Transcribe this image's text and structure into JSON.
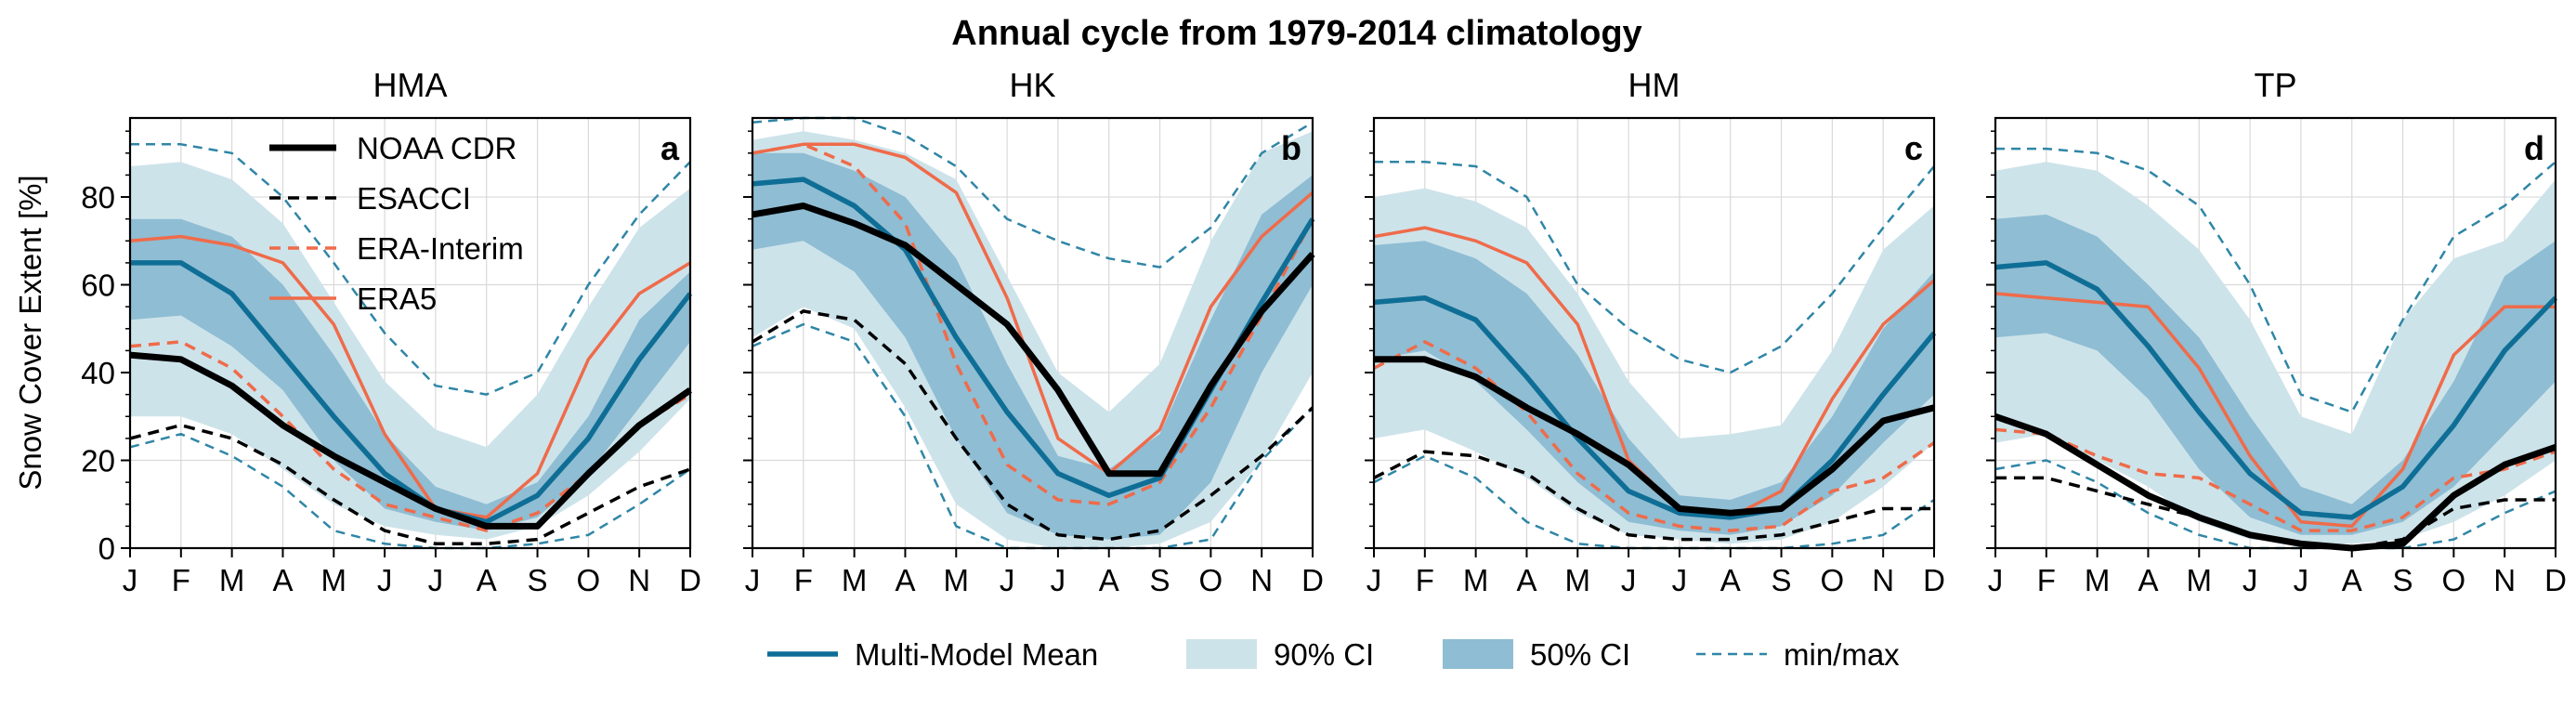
{
  "suptitle": "Annual cycle from 1979-2014 climatology",
  "ylabel": "Snow Cover Extent [%]",
  "colors": {
    "mmm": "#0f6e96",
    "ci90": "#cde3ea",
    "ci50": "#8fbdd3",
    "minmax": "#2f86a6",
    "noaa": "#000000",
    "esacci": "#000000",
    "erai": "#ef6b4a",
    "era5": "#ef6b4a"
  },
  "legend_left": [
    {
      "key": "noaa",
      "label": "NOAA CDR"
    },
    {
      "key": "esacci",
      "label": "ESACCI"
    },
    {
      "key": "erai",
      "label": "ERA-Interim"
    },
    {
      "key": "era5",
      "label": "ERA5"
    }
  ],
  "legend_bottom": [
    {
      "key": "mmm",
      "label": "Multi-Model Mean"
    },
    {
      "key": "ci90",
      "label": "90% CI"
    },
    {
      "key": "ci50",
      "label": "50% CI"
    },
    {
      "key": "minmax",
      "label": "min/max"
    }
  ],
  "chart_data": [
    {
      "type": "line",
      "title": "HMA",
      "panel_letter": "a",
      "categories": [
        "J",
        "F",
        "M",
        "A",
        "M",
        "J",
        "J",
        "A",
        "S",
        "O",
        "N",
        "D"
      ],
      "ylim": [
        0,
        98
      ],
      "yticks": [
        0,
        20,
        40,
        60,
        80
      ],
      "grid": true,
      "ci90": {
        "low": [
          30,
          30,
          26,
          18,
          10,
          5,
          3,
          2,
          5,
          12,
          22,
          34
        ],
        "high": [
          87,
          88,
          84,
          74,
          56,
          38,
          27,
          23,
          35,
          55,
          73,
          82
        ]
      },
      "ci50": {
        "low": [
          52,
          53,
          46,
          36,
          20,
          9,
          6,
          4,
          7,
          17,
          32,
          47
        ],
        "high": [
          75,
          75,
          71,
          60,
          44,
          26,
          14,
          10,
          15,
          30,
          52,
          63
        ]
      },
      "minmax": {
        "min": [
          23,
          26,
          21,
          14,
          4,
          1,
          0,
          0,
          1,
          3,
          10,
          18
        ],
        "max": [
          92,
          92,
          90,
          80,
          65,
          49,
          37,
          35,
          40,
          60,
          76,
          88
        ]
      },
      "series": [
        {
          "key": "mmm",
          "name": "Multi-Model Mean",
          "values": [
            65,
            65,
            58,
            44,
            30,
            17,
            9,
            6,
            12,
            25,
            43,
            58
          ]
        },
        {
          "key": "noaa",
          "name": "NOAA CDR",
          "values": [
            44,
            43,
            37,
            28,
            21,
            15,
            9,
            5,
            5,
            17,
            28,
            36
          ]
        },
        {
          "key": "esacci",
          "name": "ESACCI",
          "values": [
            25,
            28,
            25,
            19,
            11,
            4,
            1,
            1,
            2,
            8,
            14,
            18
          ]
        },
        {
          "key": "erai",
          "name": "ERA-Interim",
          "values": [
            46,
            47,
            41,
            30,
            18,
            10,
            7,
            4,
            8,
            17,
            28,
            35
          ]
        },
        {
          "key": "era5",
          "name": "ERA5",
          "values": [
            70,
            71,
            69,
            65,
            51,
            26,
            9,
            7,
            17,
            43,
            58,
            65
          ]
        }
      ]
    },
    {
      "type": "line",
      "title": "HK",
      "panel_letter": "b",
      "categories": [
        "J",
        "F",
        "M",
        "A",
        "M",
        "J",
        "J",
        "A",
        "S",
        "O",
        "N",
        "D"
      ],
      "ylim": [
        0,
        98
      ],
      "yticks": [
        0,
        20,
        40,
        60,
        80
      ],
      "grid": true,
      "ci90": {
        "low": [
          48,
          55,
          50,
          32,
          10,
          2,
          0,
          0,
          1,
          6,
          20,
          40
        ],
        "high": [
          93,
          95,
          93,
          90,
          84,
          62,
          40,
          31,
          42,
          70,
          90,
          95
        ]
      },
      "ci50": {
        "low": [
          68,
          70,
          63,
          48,
          25,
          8,
          3,
          2,
          3,
          15,
          40,
          60
        ],
        "high": [
          90,
          90,
          86,
          80,
          66,
          42,
          21,
          18,
          26,
          52,
          76,
          85
        ]
      },
      "minmax": {
        "min": [
          46,
          51,
          47,
          30,
          5,
          0,
          0,
          0,
          0,
          2,
          20,
          32
        ],
        "max": [
          97,
          98,
          98,
          94,
          87,
          75,
          70,
          66,
          64,
          73,
          90,
          97
        ]
      },
      "series": [
        {
          "key": "mmm",
          "name": "Multi-Model Mean",
          "values": [
            83,
            84,
            78,
            68,
            48,
            31,
            17,
            12,
            16,
            36,
            56,
            75
          ]
        },
        {
          "key": "noaa",
          "name": "NOAA CDR",
          "values": [
            76,
            78,
            74,
            69,
            60,
            51,
            36,
            17,
            17,
            37,
            54,
            67
          ]
        },
        {
          "key": "esacci",
          "name": "ESACCI",
          "values": [
            47,
            54,
            52,
            42,
            25,
            10,
            3,
            2,
            4,
            12,
            21,
            32
          ]
        },
        {
          "key": "erai",
          "name": "ERA-Interim",
          "values": [
            90,
            92,
            87,
            74,
            42,
            19,
            11,
            10,
            15,
            32,
            53,
            75
          ]
        },
        {
          "key": "era5",
          "name": "ERA5",
          "values": [
            90,
            92,
            92,
            89,
            81,
            57,
            25,
            17,
            27,
            55,
            71,
            81
          ]
        }
      ]
    },
    {
      "type": "line",
      "title": "HM",
      "panel_letter": "c",
      "categories": [
        "J",
        "F",
        "M",
        "A",
        "M",
        "J",
        "J",
        "A",
        "S",
        "O",
        "N",
        "D"
      ],
      "ylim": [
        0,
        98
      ],
      "yticks": [
        0,
        20,
        40,
        60,
        80
      ],
      "grid": true,
      "ci90": {
        "low": [
          25,
          27,
          22,
          16,
          8,
          3,
          2,
          1,
          2,
          6,
          14,
          24
        ],
        "high": [
          80,
          82,
          79,
          73,
          58,
          38,
          25,
          26,
          28,
          45,
          68,
          78
        ]
      },
      "ci50": {
        "low": [
          43,
          45,
          38,
          27,
          15,
          6,
          4,
          3,
          5,
          12,
          24,
          35
        ],
        "high": [
          69,
          70,
          66,
          58,
          44,
          25,
          12,
          11,
          15,
          30,
          50,
          63
        ]
      },
      "minmax": {
        "min": [
          15,
          21,
          16,
          6,
          1,
          0,
          0,
          0,
          0,
          1,
          3,
          11
        ],
        "max": [
          88,
          88,
          87,
          80,
          60,
          50,
          43,
          40,
          46,
          58,
          73,
          87
        ]
      },
      "series": [
        {
          "key": "mmm",
          "name": "Multi-Model Mean",
          "values": [
            56,
            57,
            52,
            39,
            25,
            13,
            8,
            7,
            9,
            20,
            35,
            49
          ]
        },
        {
          "key": "noaa",
          "name": "NOAA CDR",
          "values": [
            43,
            43,
            39,
            32,
            26,
            19,
            9,
            8,
            9,
            18,
            29,
            32
          ]
        },
        {
          "key": "esacci",
          "name": "ESACCI",
          "values": [
            16,
            22,
            21,
            17,
            9,
            3,
            2,
            2,
            3,
            6,
            9,
            9
          ]
        },
        {
          "key": "erai",
          "name": "ERA-Interim",
          "values": [
            41,
            47,
            41,
            31,
            17,
            8,
            5,
            4,
            5,
            13,
            16,
            24
          ]
        },
        {
          "key": "era5",
          "name": "ERA5",
          "values": [
            71,
            73,
            70,
            65,
            51,
            20,
            9,
            7,
            13,
            34,
            51,
            61
          ]
        }
      ]
    },
    {
      "type": "line",
      "title": "TP",
      "panel_letter": "d",
      "categories": [
        "J",
        "F",
        "M",
        "A",
        "M",
        "J",
        "J",
        "A",
        "S",
        "O",
        "N",
        "D"
      ],
      "ylim": [
        0,
        98
      ],
      "yticks": [
        0,
        20,
        40,
        60,
        80
      ],
      "grid": true,
      "ci90": {
        "low": [
          24,
          26,
          20,
          14,
          6,
          2,
          1,
          1,
          2,
          6,
          12,
          20
        ],
        "high": [
          86,
          88,
          86,
          78,
          68,
          52,
          30,
          26,
          52,
          66,
          70,
          84
        ]
      },
      "ci50": {
        "low": [
          48,
          49,
          45,
          34,
          18,
          7,
          3,
          3,
          6,
          14,
          26,
          38
        ],
        "high": [
          75,
          76,
          71,
          60,
          48,
          30,
          14,
          10,
          20,
          38,
          62,
          70
        ]
      },
      "minmax": {
        "min": [
          18,
          20,
          15,
          8,
          3,
          0,
          0,
          0,
          0,
          2,
          8,
          13
        ],
        "max": [
          91,
          91,
          90,
          86,
          78,
          60,
          35,
          31,
          52,
          71,
          78,
          88
        ]
      },
      "series": [
        {
          "key": "mmm",
          "name": "Multi-Model Mean",
          "values": [
            64,
            65,
            59,
            46,
            31,
            17,
            8,
            7,
            14,
            28,
            45,
            57
          ]
        },
        {
          "key": "noaa",
          "name": "NOAA CDR",
          "values": [
            30,
            26,
            19,
            12,
            7,
            3,
            1,
            0,
            1,
            12,
            19,
            23
          ]
        },
        {
          "key": "esacci",
          "name": "ESACCI",
          "values": [
            16,
            16,
            13,
            10,
            7,
            3,
            1,
            0,
            2,
            9,
            11,
            11
          ]
        },
        {
          "key": "erai",
          "name": "ERA-Interim",
          "values": [
            27,
            26,
            21,
            17,
            16,
            10,
            4,
            4,
            7,
            16,
            18,
            22
          ]
        },
        {
          "key": "era5",
          "name": "ERA5",
          "values": [
            58,
            57,
            56,
            55,
            41,
            21,
            6,
            5,
            18,
            44,
            55,
            55
          ]
        }
      ]
    }
  ]
}
